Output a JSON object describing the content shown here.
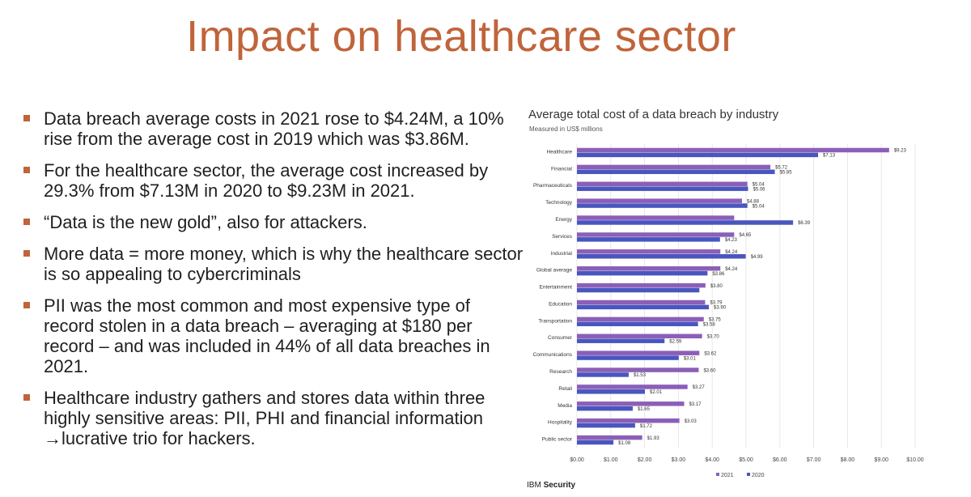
{
  "slide": {
    "title": "Impact on healthcare sector",
    "bullets": [
      "Data breach average costs in 2021 rose to $4.24M, a 10% rise from the average cost in 2019 which was $3.86M.",
      "For the healthcare sector, the average cost increased by 29.3% from $7.13M in 2020 to $9.23M in 2021.",
      "“Data is the new gold”, also for attackers.",
      "More data = more money,  which is why the healthcare sector is so appealing to cybercriminals",
      "PII was the most common and most expensive type of record stolen in a data breach – averaging at $180 per record – and was included in 44% of all data breaches in 2021.",
      "Healthcare industry gathers and stores data within three highly sensitive areas: PII, PHI and financial information →lucrative trio for hackers."
    ]
  },
  "footer": {
    "brand_light": "IBM",
    "brand_bold": "Security"
  },
  "colors": {
    "title": "#c0643a",
    "bullet": "#c0643a",
    "series_2021": "#8b5fb8",
    "series_2020": "#4a56bf"
  },
  "chart_data": {
    "type": "bar",
    "orientation": "horizontal",
    "title": "Average total cost of a data breach by industry",
    "subtitle": "Measured in US$ millions",
    "categories": [
      "Healthcare",
      "Financial",
      "Pharmaceuticals",
      "Technology",
      "Energy",
      "Services",
      "Industrial",
      "Global average",
      "Entertainment",
      "Education",
      "Transportation",
      "Consumer",
      "Communications",
      "Research",
      "Retail",
      "Media",
      "Hospitality",
      "Public sector"
    ],
    "series": [
      {
        "name": "2021",
        "color": "#8b5fb8",
        "values": [
          9.23,
          5.72,
          5.04,
          4.88,
          4.65,
          4.65,
          4.24,
          4.24,
          3.8,
          3.79,
          3.75,
          3.7,
          3.62,
          3.6,
          3.27,
          3.17,
          3.03,
          1.93
        ],
        "labels": [
          "$9.23",
          "$5.72",
          "$5.04",
          "$4.88",
          "",
          "$4.65",
          "$4.24",
          "$4.24",
          "$3.80",
          "$3.79",
          "$3.75",
          "$3.70",
          "$3.62",
          "$3.60",
          "$3.27",
          "$3.17",
          "$3.03",
          "$1.93"
        ]
      },
      {
        "name": "2020",
        "color": "#4a56bf",
        "values": [
          7.13,
          5.85,
          5.06,
          5.04,
          6.39,
          4.23,
          4.99,
          3.86,
          3.62,
          3.9,
          3.58,
          2.59,
          3.01,
          1.53,
          2.01,
          1.65,
          1.72,
          1.08
        ],
        "labels": [
          "$7.13",
          "$5.85",
          "$5.06",
          "$5.04",
          "$6.39",
          "$4.23",
          "$4.99",
          "$3.86",
          "",
          "$3.90",
          "$3.58",
          "$2.59",
          "$3.01",
          "$1.53",
          "$2.01",
          "$1.65",
          "$1.72",
          "$1.08"
        ]
      }
    ],
    "xticks": [
      "$0.00",
      "$1.00",
      "$2.00",
      "$3.00",
      "$4.00",
      "$5.00",
      "$6.00",
      "$7.00",
      "$8.00",
      "$9.00",
      "$10.00"
    ],
    "xlim": [
      0,
      10
    ],
    "grid": true,
    "legend": "bottom"
  }
}
